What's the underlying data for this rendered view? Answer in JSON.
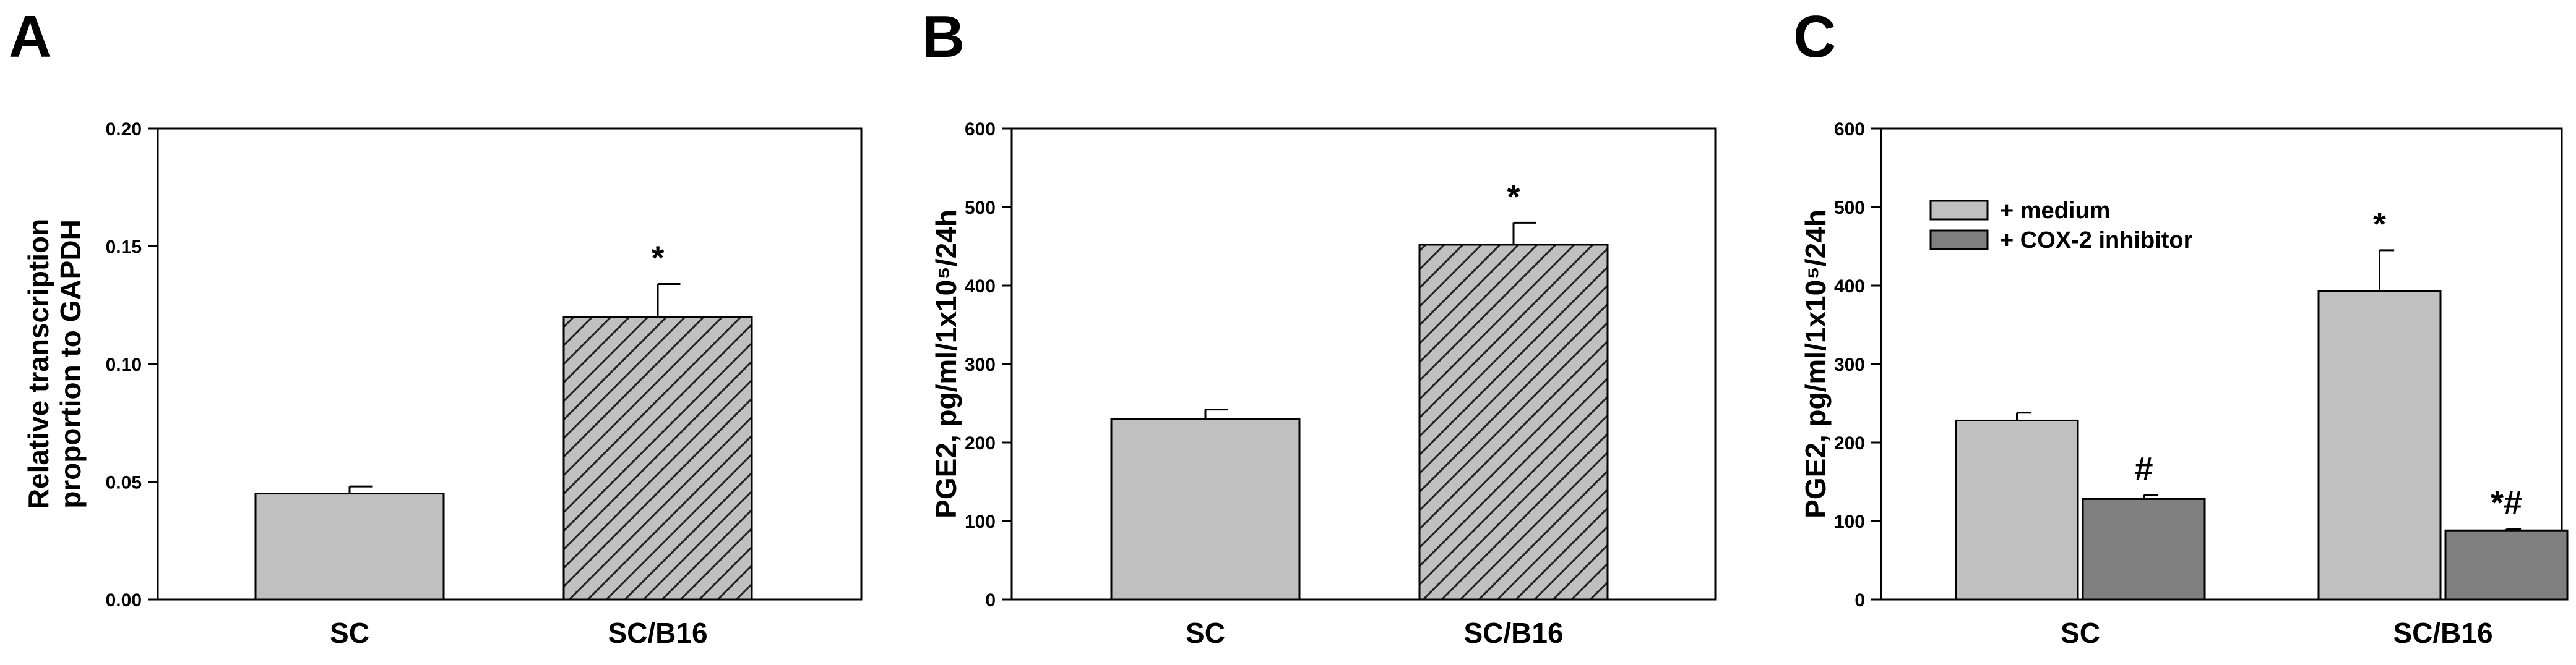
{
  "chart_data": [
    {
      "panel": "A",
      "type": "bar",
      "categories": [
        "SC",
        "SC/B16"
      ],
      "series": [
        {
          "values": [
            0.045,
            0.12
          ],
          "errors": [
            0.003,
            0.014
          ],
          "annotations": [
            "",
            "*"
          ]
        }
      ],
      "bar_colors": [
        "#c0c0c0",
        "#c0c0c0"
      ],
      "bar_hatch": [
        false,
        true
      ],
      "ylabel": [
        "Relative transcription",
        "proportion to GAPDH"
      ],
      "ylim": [
        0,
        0.2
      ],
      "yticks": [
        0.0,
        0.05,
        0.1,
        0.15,
        0.2
      ],
      "ytick_labels": [
        "0.00",
        "0.05",
        "0.10",
        "0.15",
        "0.20"
      ],
      "grid": false
    },
    {
      "panel": "B",
      "type": "bar",
      "categories": [
        "SC",
        "SC/B16"
      ],
      "series": [
        {
          "values": [
            230,
            452
          ],
          "errors": [
            12,
            28
          ],
          "annotations": [
            "",
            "*"
          ]
        }
      ],
      "bar_colors": [
        "#c0c0c0",
        "#c0c0c0"
      ],
      "bar_hatch": [
        false,
        true
      ],
      "ylabel": "PGE2, pg/ml/1x10⁵/24h",
      "ylim": [
        0,
        600
      ],
      "yticks": [
        0,
        100,
        200,
        300,
        400,
        500,
        600
      ],
      "ytick_labels": [
        "0",
        "100",
        "200",
        "300",
        "400",
        "500",
        "600"
      ],
      "grid": false
    },
    {
      "panel": "C",
      "type": "bar",
      "categories": [
        "SC",
        "SC/B16"
      ],
      "series": [
        {
          "name": "+ medium",
          "color": "#c0c0c0",
          "values": [
            228,
            393
          ],
          "errors": [
            10,
            52
          ],
          "annotations": [
            "",
            "*"
          ]
        },
        {
          "name": "+ COX-2 inhibitor",
          "color": "#808080",
          "values": [
            128,
            88
          ],
          "errors": [
            5,
            2
          ],
          "annotations": [
            "#",
            "*#"
          ]
        }
      ],
      "ylabel": "PGE2, pg/ml/1x10⁵/24h",
      "ylim": [
        0,
        600
      ],
      "yticks": [
        0,
        100,
        200,
        300,
        400,
        500,
        600
      ],
      "ytick_labels": [
        "0",
        "100",
        "200",
        "300",
        "400",
        "500",
        "600"
      ],
      "legend_position": "top-left",
      "grid": false
    }
  ]
}
